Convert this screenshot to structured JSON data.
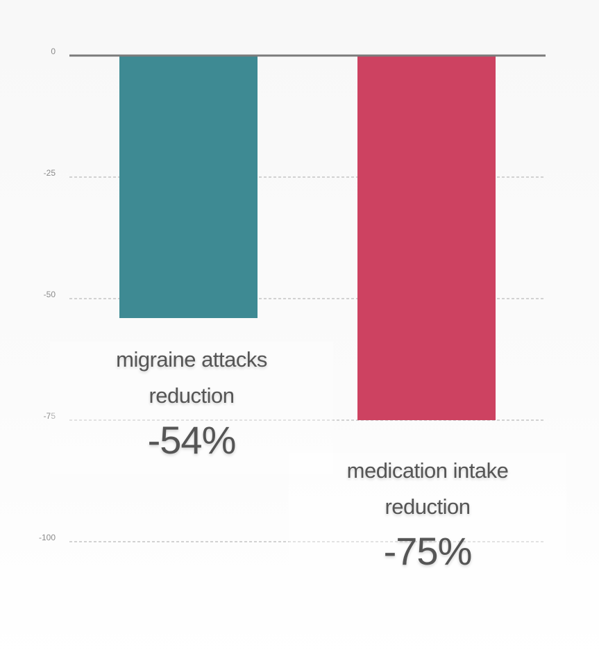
{
  "chart_data": {
    "type": "bar",
    "categories": [
      "migraine attacks reduction",
      "medication intake reduction"
    ],
    "values": [
      -54,
      -75
    ],
    "value_labels": [
      "-54%",
      "-75%"
    ],
    "colors": [
      "#3e8a93",
      "#cd4261"
    ],
    "ylim": [
      -100,
      0
    ],
    "yticks": [
      0,
      -25,
      -50,
      -75,
      -100
    ],
    "ytick_labels": [
      "0",
      "-25",
      "-50",
      "-75",
      "-100"
    ],
    "grid": true,
    "title": "",
    "xlabel": "",
    "ylabel": ""
  },
  "labels": [
    {
      "line1": "migraine attacks",
      "line2": "reduction",
      "value": "-54%"
    },
    {
      "line1": "medication intake",
      "line2": "reduction",
      "value": "-75%"
    }
  ]
}
